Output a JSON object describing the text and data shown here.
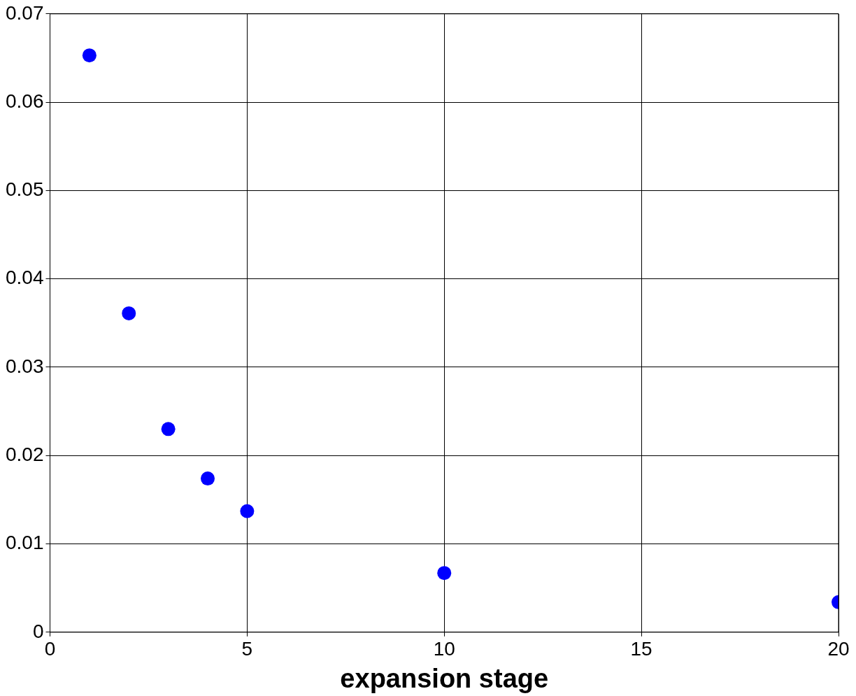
{
  "chart_data": {
    "type": "scatter",
    "xlabel": "expansion stage",
    "x": [
      1,
      2,
      3,
      4,
      5,
      10,
      20
    ],
    "series": [
      {
        "color": "#0000ff",
        "values": [
          0.0653,
          0.0361,
          0.023,
          0.0174,
          0.0137,
          0.0067,
          0.0034
        ]
      }
    ],
    "xlim": [
      0,
      20
    ],
    "xticks": [
      0,
      5,
      10,
      15,
      20
    ],
    "ylim": [
      0,
      0.07
    ],
    "yticks": [
      0,
      0.01,
      0.02,
      0.03,
      0.04,
      0.05,
      0.06,
      0.07
    ],
    "grid": true,
    "marker": "circle",
    "legend": false
  }
}
